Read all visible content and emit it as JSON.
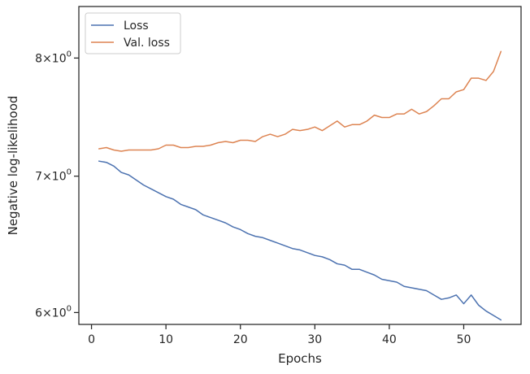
{
  "chart_data": {
    "type": "line",
    "xlabel": "Epochs",
    "ylabel": "Negative log-likelihood",
    "yscale": "log",
    "xlim": [
      -1.7,
      57.7
    ],
    "ylim": [
      5.92,
      8.48
    ],
    "x_ticks": [
      0,
      10,
      20,
      30,
      40,
      50
    ],
    "y_ticks": [
      {
        "value": 6,
        "mantissa": "6",
        "base": "10",
        "exp": "0"
      },
      {
        "value": 7,
        "mantissa": "7",
        "base": "10",
        "exp": "0"
      },
      {
        "value": 8,
        "mantissa": "8",
        "base": "10",
        "exp": "0"
      }
    ],
    "grid": false,
    "legend_position": "upper left",
    "x": [
      1,
      2,
      3,
      4,
      5,
      6,
      7,
      8,
      9,
      10,
      11,
      12,
      13,
      14,
      15,
      16,
      17,
      18,
      19,
      20,
      21,
      22,
      23,
      24,
      25,
      26,
      27,
      28,
      29,
      30,
      31,
      32,
      33,
      34,
      35,
      36,
      37,
      38,
      39,
      40,
      41,
      42,
      43,
      44,
      45,
      46,
      47,
      48,
      49,
      50,
      51,
      52,
      53,
      54,
      55
    ],
    "series": [
      {
        "name": "Loss",
        "color": "#4c72b0",
        "values": [
          7.12,
          7.11,
          7.08,
          7.03,
          7.01,
          6.97,
          6.93,
          6.9,
          6.87,
          6.84,
          6.82,
          6.78,
          6.76,
          6.74,
          6.7,
          6.68,
          6.66,
          6.64,
          6.61,
          6.59,
          6.56,
          6.54,
          6.53,
          6.51,
          6.49,
          6.47,
          6.45,
          6.44,
          6.42,
          6.4,
          6.39,
          6.37,
          6.34,
          6.33,
          6.3,
          6.3,
          6.28,
          6.26,
          6.23,
          6.22,
          6.21,
          6.18,
          6.17,
          6.16,
          6.15,
          6.12,
          6.09,
          6.1,
          6.12,
          6.06,
          6.12,
          6.05,
          6.01,
          5.98,
          5.95
        ]
      },
      {
        "name": "Val. loss",
        "color": "#dd8452",
        "values": [
          7.22,
          7.23,
          7.21,
          7.2,
          7.21,
          7.21,
          7.21,
          7.21,
          7.22,
          7.25,
          7.25,
          7.23,
          7.23,
          7.24,
          7.24,
          7.25,
          7.27,
          7.28,
          7.27,
          7.29,
          7.29,
          7.28,
          7.32,
          7.34,
          7.32,
          7.34,
          7.38,
          7.37,
          7.38,
          7.4,
          7.37,
          7.41,
          7.45,
          7.4,
          7.42,
          7.42,
          7.45,
          7.5,
          7.48,
          7.48,
          7.51,
          7.51,
          7.55,
          7.51,
          7.53,
          7.58,
          7.64,
          7.64,
          7.7,
          7.72,
          7.82,
          7.82,
          7.8,
          7.88,
          8.06
        ]
      }
    ]
  }
}
